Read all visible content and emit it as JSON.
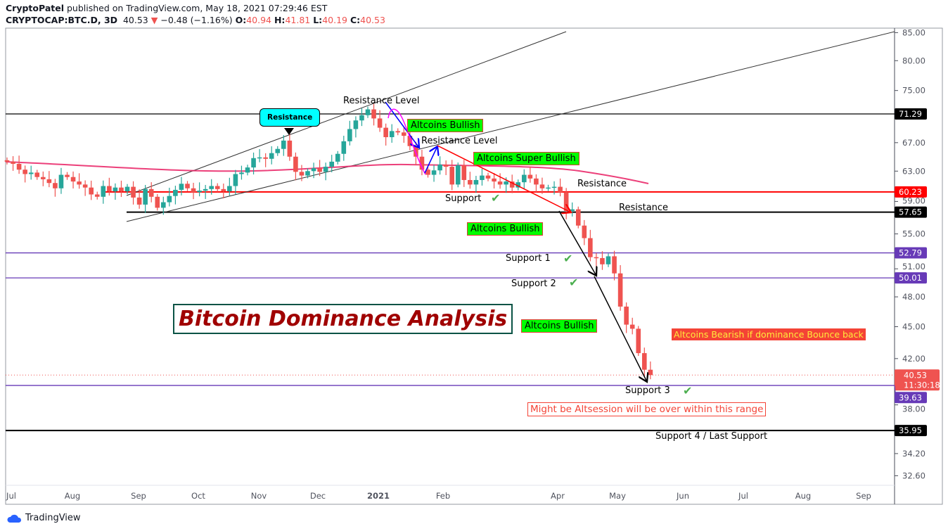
{
  "header": {
    "author": "CryptoPatel",
    "published": "published on TradingView.com, May 18, 2021 07:29:46 EST",
    "symbol": "CRYPTOCAP:BTC.D, 3D",
    "last": "40.53",
    "change": "−0.48 (−1.16%)",
    "o_label": "O:",
    "o": "40.94",
    "h_label": "H:",
    "h": "41.81",
    "l_label": "L:",
    "l": "40.19",
    "c_label": "C:",
    "c": "40.53"
  },
  "footer": {
    "brand": "TradingView"
  },
  "colors": {
    "up": "#26a69a",
    "down": "#ef5350",
    "ma": "#e91e63",
    "purple": "#673ab7",
    "label_green": "#00ff00",
    "cyan": "#00ffff"
  },
  "chart_data": {
    "type": "candlestick",
    "scale": "log",
    "ylim": [
      31.5,
      86
    ],
    "y_ticks": [
      "85.00",
      "80.00",
      "75.00",
      "67.00",
      "63.00",
      "59.00",
      "55.00",
      "51.00",
      "48.00",
      "45.00",
      "42.00",
      "38.00",
      "34.20",
      "32.60"
    ],
    "x_ticks": [
      "Jul",
      "Aug",
      "Sep",
      "Oct",
      "Nov",
      "Dec",
      "2021",
      "Feb",
      "Apr",
      "May",
      "Jun",
      "Jul",
      "Aug",
      "Sep"
    ],
    "interval": "3D",
    "first_open": 64.5,
    "closes": [
      64.3,
      64.0,
      63.2,
      62.6,
      62.8,
      62.2,
      61.9,
      61.4,
      60.7,
      62.5,
      62.2,
      61.6,
      61.2,
      60.8,
      59.9,
      59.6,
      61.0,
      60.3,
      60.8,
      60.3,
      60.9,
      59.5,
      58.6,
      60.6,
      59.6,
      58.2,
      58.9,
      59.7,
      60.5,
      61.3,
      60.7,
      60.2,
      60.4,
      60.6,
      61.0,
      60.6,
      60.3,
      61.0,
      62.6,
      62.8,
      63.5,
      64.8,
      64.9,
      64.7,
      65.5,
      66.1,
      67.3,
      65.0,
      62.9,
      62.4,
      63.0,
      63.4,
      62.9,
      63.6,
      64.3,
      65.4,
      67.2,
      69.0,
      70.3,
      71.1,
      72.0,
      70.6,
      69.2,
      67.8,
      68.7,
      68.5,
      68.0,
      66.5,
      65.0,
      63.2,
      62.5,
      63.1,
      63.9,
      63.6,
      61.2,
      63.8,
      61.8,
      61.2,
      61.8,
      62.4,
      62.0,
      61.6,
      61.2,
      61.6,
      60.8,
      61.5,
      62.5,
      62.0,
      61.2,
      60.7,
      60.8,
      60.9,
      60.2,
      57.8,
      58.0,
      56.0,
      54.5,
      52.3,
      52.2,
      51.5,
      52.4,
      50.5,
      47.0,
      45.2,
      44.8,
      42.5,
      41.0,
      40.53
    ],
    "horizontal_levels": [
      {
        "value": 71.29,
        "label": "71.29",
        "color": "#000000"
      },
      {
        "value": 60.23,
        "label": "60.23",
        "color": "#ff0000"
      },
      {
        "value": 57.65,
        "label": "57.65",
        "color": "#000000"
      },
      {
        "value": 52.79,
        "label": "52.79",
        "color": "#673ab7"
      },
      {
        "value": 50.01,
        "label": "50.01",
        "color": "#673ab7"
      },
      {
        "value": 39.63,
        "label": "39.63",
        "color": "#673ab7"
      },
      {
        "value": 35.95,
        "label": "35.95",
        "color": "#000000"
      }
    ],
    "last_price": {
      "label": "40.53",
      "countdown": "11:30:18",
      "color": "#ef5350"
    }
  },
  "annotations": {
    "title": "Bitcoin Dominance Analysis",
    "resistance_callout": "Resistance",
    "resistance_level_1": "Resistance Level",
    "resistance_level_2": "Resistance Level",
    "altcoins_bullish_1": "Altcoins  Bullish",
    "altcoins_super_bullish": "Altcoins  Super Bullish",
    "altcoins_bullish_2": "Altcoins  Bullish",
    "altcoins_bullish_3": "Altcoins  Bullish",
    "support": "Support",
    "resistance_a": "Resistance",
    "resistance_b": "Resistance",
    "support_1": "Support 1",
    "support_2": "Support 2",
    "support_3": "Support 3",
    "support_4": "Support 4 / Last Support",
    "bearish": "Altcoins  Bearish if dominance Bounce back",
    "altsession": "Might be Altsession will be over within this range"
  }
}
